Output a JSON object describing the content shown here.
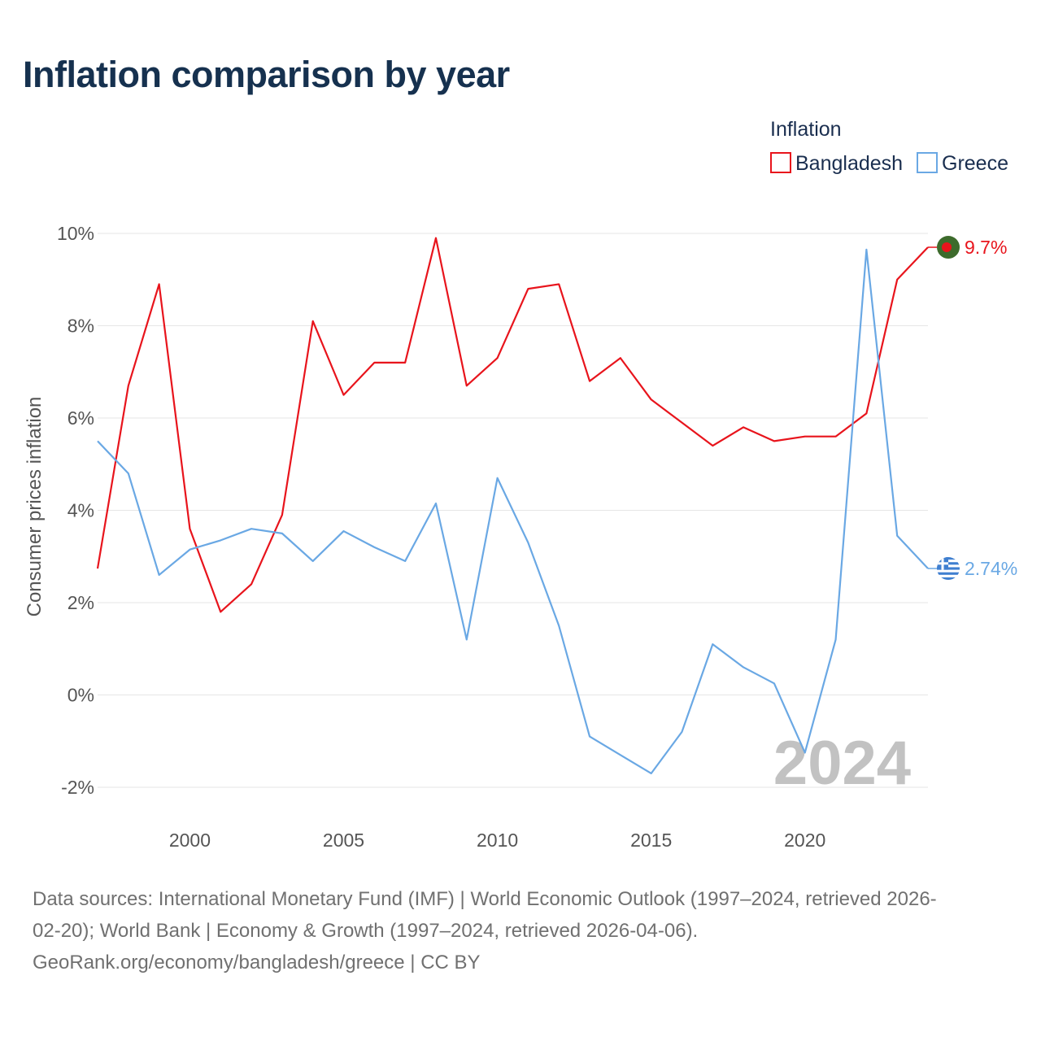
{
  "title": "Inflation comparison by year",
  "chart_data": {
    "type": "line",
    "title": "Inflation comparison by year",
    "xlabel": "",
    "ylabel": "Consumer prices inflation",
    "xlim": [
      1997,
      2024
    ],
    "ylim": [
      -2,
      10
    ],
    "yticks": [
      -2,
      0,
      2,
      4,
      6,
      8,
      10
    ],
    "ytick_labels": [
      "-2%",
      "0%",
      "2%",
      "4%",
      "6%",
      "8%",
      "10%"
    ],
    "xticks": [
      2000,
      2005,
      2010,
      2015,
      2020
    ],
    "xtick_labels": [
      "2000",
      "2005",
      "2010",
      "2015",
      "2020"
    ],
    "grid": true,
    "current_year_label": "2024",
    "legend": {
      "title": "Inflation",
      "position": "top-right"
    },
    "x": [
      1997,
      1998,
      1999,
      2000,
      2001,
      2002,
      2003,
      2004,
      2005,
      2006,
      2007,
      2008,
      2009,
      2010,
      2011,
      2012,
      2013,
      2014,
      2015,
      2016,
      2017,
      2018,
      2019,
      2020,
      2021,
      2022,
      2023,
      2024
    ],
    "series": [
      {
        "name": "Bangladesh",
        "color": "#e8141c",
        "end_label": "9.7%",
        "marker_flag": "bangladesh-flag",
        "values": [
          2.74,
          6.7,
          8.9,
          3.6,
          1.8,
          2.4,
          3.9,
          8.1,
          6.5,
          7.2,
          7.2,
          9.9,
          6.7,
          7.3,
          8.8,
          8.9,
          6.8,
          7.3,
          6.4,
          5.9,
          5.4,
          5.8,
          5.5,
          5.6,
          5.6,
          6.1,
          9.0,
          9.7
        ]
      },
      {
        "name": "Greece",
        "color": "#6aa8e4",
        "end_label": "2.74%",
        "marker_flag": "greece-flag",
        "values": [
          5.5,
          4.8,
          2.6,
          3.15,
          3.35,
          3.6,
          3.5,
          2.9,
          3.55,
          3.2,
          2.9,
          4.15,
          1.2,
          4.7,
          3.3,
          1.5,
          -0.9,
          -1.3,
          -1.7,
          -0.8,
          1.1,
          0.6,
          0.25,
          -1.25,
          1.2,
          9.65,
          3.45,
          2.74
        ]
      }
    ]
  },
  "footer": {
    "line1": "Data sources: International Monetary Fund (IMF) | World Economic Outlook (1997–2024, retrieved 2026-",
    "line2": "02-20); World Bank | Economy & Growth (1997–2024, retrieved 2026-04-06).",
    "line3": "GeoRank.org/economy/bangladesh/greece | CC BY"
  }
}
